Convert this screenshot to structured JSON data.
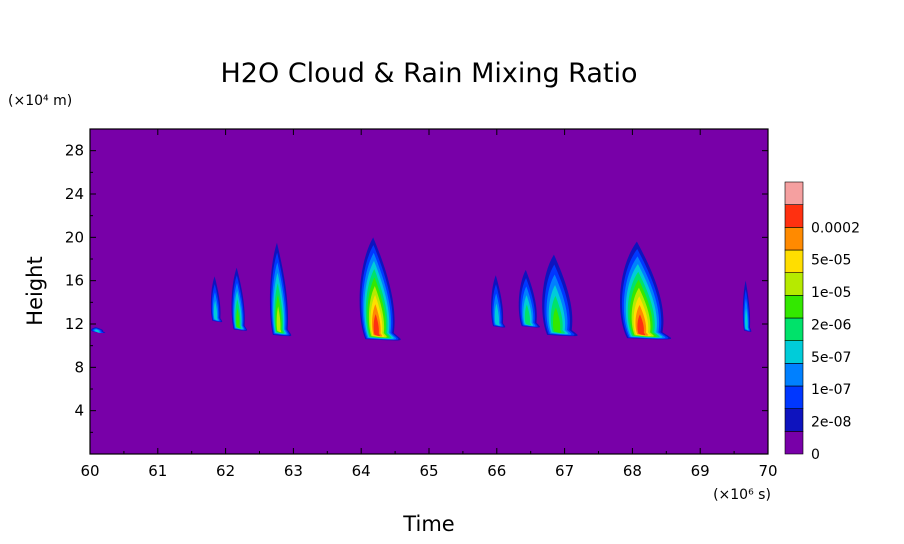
{
  "chart_data": {
    "type": "heatmap",
    "subtype": "filled-contour",
    "title": "H2O Cloud & Rain Mixing Ratio",
    "xlabel": "Time",
    "ylabel": "Height",
    "x_unit": "(×10⁶ s)",
    "y_unit": "(×10⁴ m)",
    "xlim": [
      60,
      70
    ],
    "ylim": [
      0,
      30
    ],
    "x_ticks": [
      60,
      61,
      62,
      63,
      64,
      65,
      66,
      67,
      68,
      69,
      70
    ],
    "y_ticks": [
      4,
      8,
      12,
      16,
      20,
      24,
      28
    ],
    "colorbar": {
      "levels": [
        "0",
        "2e-08",
        "1e-07",
        "5e-07",
        "2e-06",
        "1e-05",
        "5e-05",
        "0.0002"
      ],
      "colors": [
        "#7800a8",
        "#0e13be",
        "#0037ff",
        "#0080ff",
        "#00ccd9",
        "#00e26a",
        "#33e800",
        "#b6ea00",
        "#ffde00",
        "#ff8a00",
        "#ff3010",
        "#f5a0a0"
      ]
    },
    "cells": [
      {
        "x": 60.1,
        "ybase": 11.3,
        "ytop": 11.7,
        "width": 0.2,
        "peak": 4
      },
      {
        "x": 61.85,
        "ybase": 12.3,
        "ytop": 16.4,
        "width": 0.16,
        "peak": 4
      },
      {
        "x": 62.18,
        "ybase": 11.5,
        "ytop": 17.2,
        "width": 0.22,
        "peak": 6
      },
      {
        "x": 62.78,
        "ybase": 11.0,
        "ytop": 19.5,
        "width": 0.3,
        "peak": 7
      },
      {
        "x": 64.22,
        "ybase": 10.6,
        "ytop": 20.0,
        "width": 0.58,
        "peak": 10
      },
      {
        "x": 66.0,
        "ybase": 11.8,
        "ytop": 16.5,
        "width": 0.2,
        "peak": 4
      },
      {
        "x": 66.45,
        "ybase": 11.8,
        "ytop": 17.0,
        "width": 0.3,
        "peak": 5
      },
      {
        "x": 66.88,
        "ybase": 11.0,
        "ytop": 18.4,
        "width": 0.5,
        "peak": 6
      },
      {
        "x": 68.12,
        "ybase": 10.7,
        "ytop": 19.6,
        "width": 0.72,
        "peak": 10
      },
      {
        "x": 69.68,
        "ybase": 11.4,
        "ytop": 16.0,
        "width": 0.12,
        "peak": 4
      }
    ]
  }
}
